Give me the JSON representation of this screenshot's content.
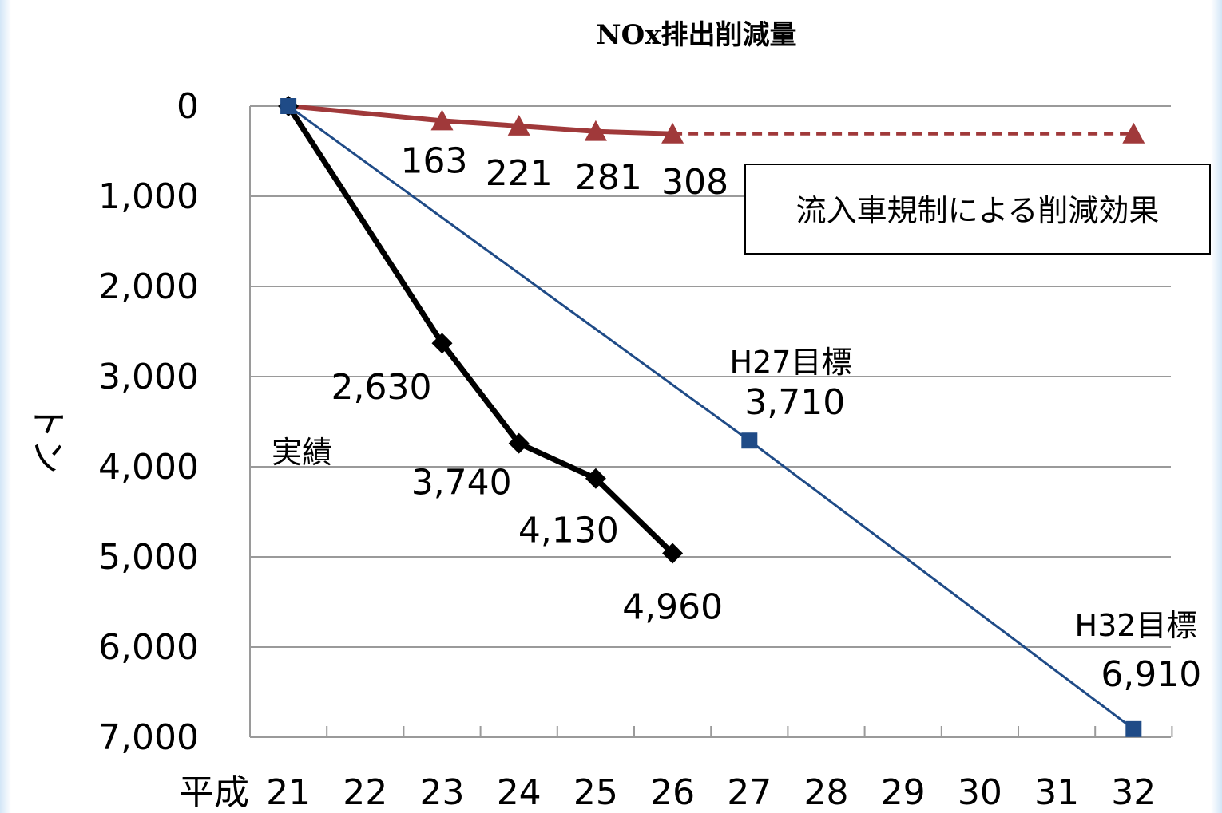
{
  "chart_data": {
    "type": "line",
    "title": "NOx排出削減量",
    "ylabel": "トン",
    "x_prefix": "平成",
    "x": [
      21,
      22,
      23,
      24,
      25,
      26,
      27,
      28,
      29,
      30,
      31,
      32
    ],
    "x_tick_labels": [
      "21",
      "22",
      "23",
      "24",
      "25",
      "26",
      "27",
      "28",
      "29",
      "30",
      "31",
      "32"
    ],
    "ylim": [
      0,
      7000
    ],
    "y_inverted": true,
    "y_ticks": [
      0,
      1000,
      2000,
      3000,
      4000,
      5000,
      6000,
      7000
    ],
    "y_tick_labels": [
      "0",
      "1,000",
      "2,000",
      "3,000",
      "4,000",
      "5,000",
      "6,000",
      "7,000"
    ],
    "grid": true,
    "series": [
      {
        "key": "inflow",
        "name": "流入車規制による削減効果",
        "color": "#a0393a",
        "marker": "triangle",
        "points": [
          [
            21,
            0
          ],
          [
            23,
            163
          ],
          [
            24,
            221
          ],
          [
            25,
            281
          ],
          [
            26,
            308
          ]
        ],
        "projection": [
          [
            26,
            308
          ],
          [
            32,
            308
          ]
        ],
        "labels": [
          "163",
          "221",
          "281",
          "308"
        ]
      },
      {
        "key": "actual",
        "name": "実績",
        "color": "#000000",
        "marker": "diamond",
        "points": [
          [
            21,
            0
          ],
          [
            23,
            2630
          ],
          [
            24,
            3740
          ],
          [
            25,
            4130
          ],
          [
            26,
            4960
          ]
        ],
        "labels": [
          "2,630",
          "3,740",
          "4,130",
          "4,960"
        ]
      },
      {
        "key": "target",
        "color": "#1f4b87",
        "marker": "square",
        "points": [
          [
            21,
            0
          ],
          [
            27,
            3710
          ],
          [
            32,
            6910
          ]
        ],
        "labels": [
          "3,710",
          "6,910"
        ]
      }
    ],
    "annotations": [
      {
        "name": "h27-target",
        "text": "H27目標"
      },
      {
        "name": "h32-target",
        "text": "H32目標"
      }
    ]
  }
}
